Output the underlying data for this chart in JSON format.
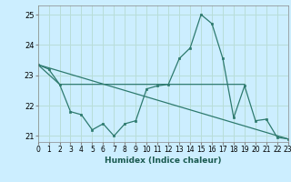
{
  "xlabel": "Humidex (Indice chaleur)",
  "bg_color": "#cceeff",
  "grid_color": "#b8ddd8",
  "line_color": "#2d7a6e",
  "xlim": [
    0,
    23
  ],
  "ylim": [
    20.8,
    25.3
  ],
  "yticks": [
    21,
    22,
    23,
    24,
    25
  ],
  "xticks": [
    0,
    1,
    2,
    3,
    4,
    5,
    6,
    7,
    8,
    9,
    10,
    11,
    12,
    13,
    14,
    15,
    16,
    17,
    18,
    19,
    20,
    21,
    22,
    23
  ],
  "line1_x": [
    0,
    1,
    2,
    3,
    4,
    5,
    6,
    7,
    8,
    9,
    10,
    11,
    12,
    13,
    14,
    15,
    16,
    17,
    18,
    19,
    20,
    21,
    22,
    23
  ],
  "line1_y": [
    23.35,
    23.2,
    22.7,
    21.8,
    21.7,
    21.2,
    21.4,
    21.0,
    21.4,
    21.5,
    22.55,
    22.65,
    22.7,
    23.55,
    23.9,
    25.0,
    24.7,
    23.55,
    21.6,
    22.65,
    21.5,
    21.55,
    20.95,
    20.9
  ],
  "line2_x": [
    0,
    2,
    19
  ],
  "line2_y": [
    23.35,
    22.7,
    22.7
  ],
  "line3_x": [
    0,
    23
  ],
  "line3_y": [
    23.35,
    20.9
  ]
}
